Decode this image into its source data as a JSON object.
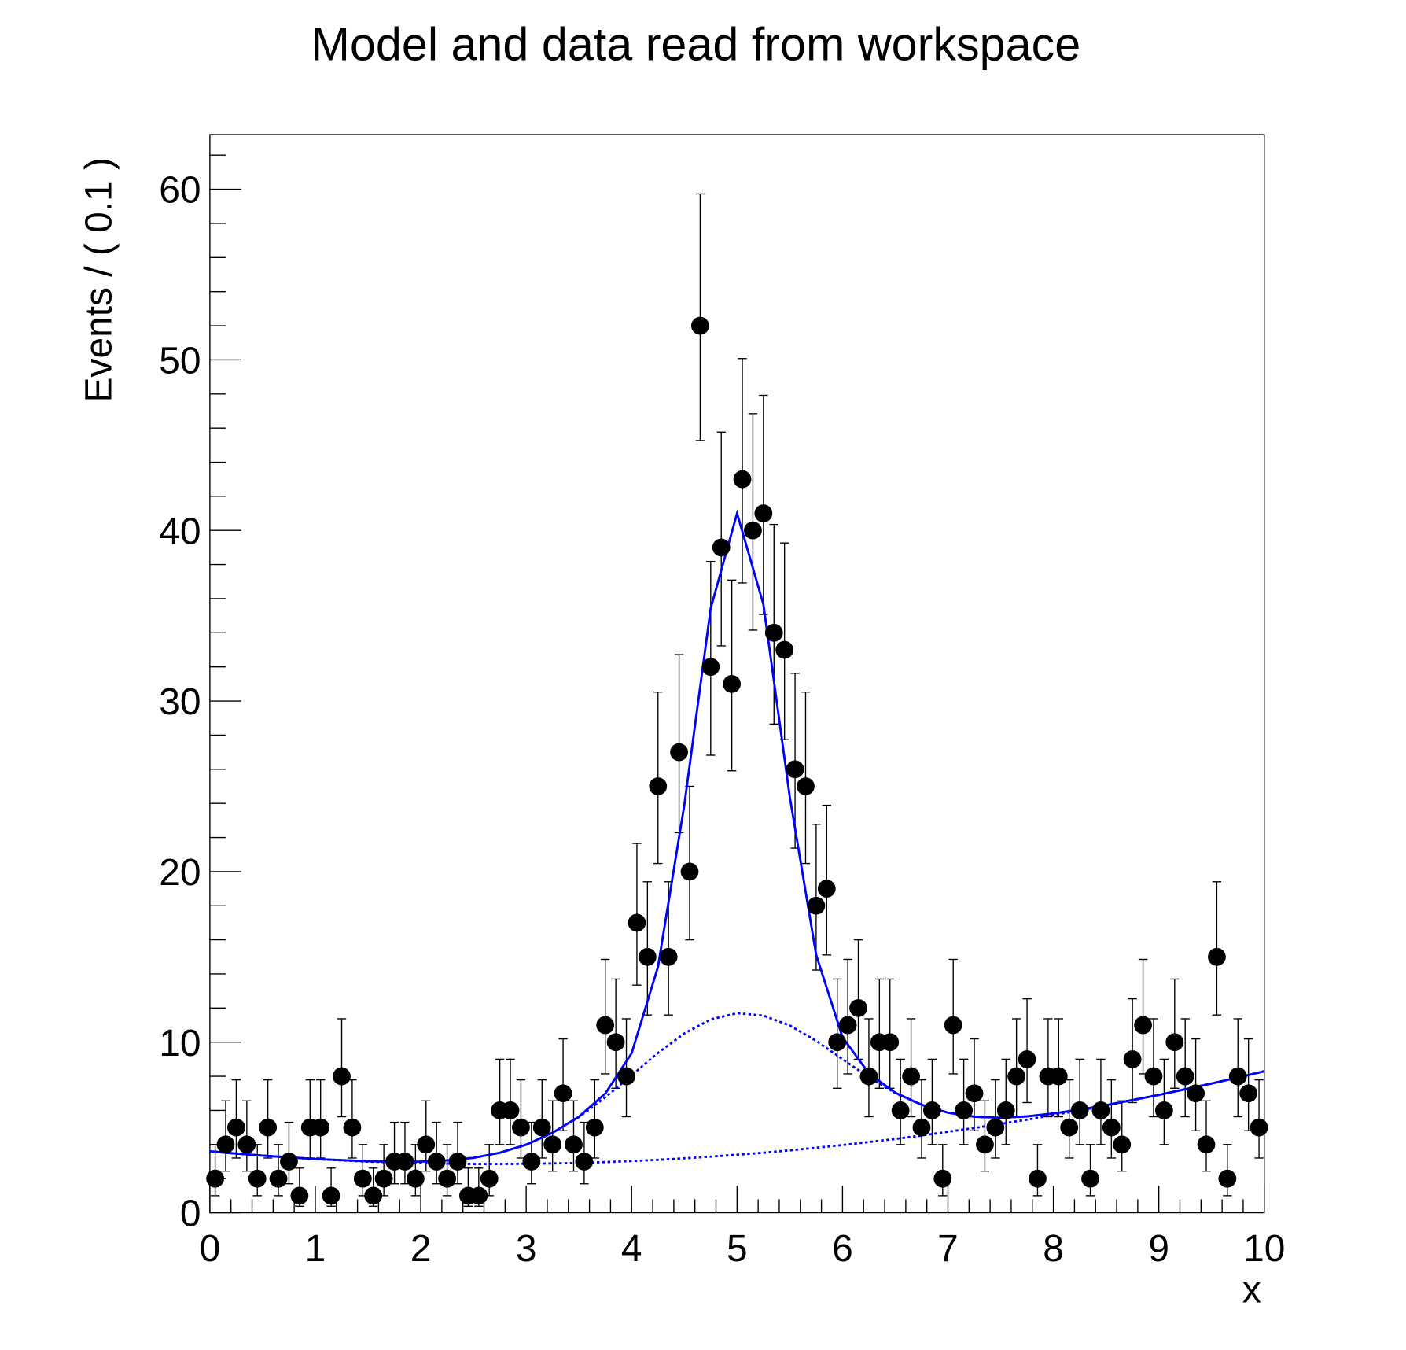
{
  "chart_data": {
    "type": "scatter",
    "title": "Model and data read from workspace",
    "xlabel": "x",
    "ylabel": "Events / ( 0.1 )",
    "xlim": [
      0,
      10
    ],
    "ylim": [
      0,
      63
    ],
    "x_ticks": [
      "0",
      "1",
      "2",
      "3",
      "4",
      "5",
      "6",
      "7",
      "8",
      "9",
      "10"
    ],
    "y_ticks": [
      "0",
      "10",
      "20",
      "30",
      "40",
      "50",
      "60"
    ],
    "grid": false,
    "data": {
      "x": [
        0.05,
        0.15,
        0.25,
        0.35,
        0.45,
        0.55,
        0.65,
        0.75,
        0.85,
        0.95,
        1.05,
        1.15,
        1.25,
        1.35,
        1.45,
        1.55,
        1.65,
        1.75,
        1.85,
        1.95,
        2.05,
        2.15,
        2.25,
        2.35,
        2.45,
        2.55,
        2.65,
        2.75,
        2.85,
        2.95,
        3.05,
        3.15,
        3.25,
        3.35,
        3.45,
        3.55,
        3.65,
        3.75,
        3.85,
        3.95,
        4.05,
        4.15,
        4.25,
        4.35,
        4.45,
        4.55,
        4.65,
        4.75,
        4.85,
        4.95,
        5.05,
        5.15,
        5.25,
        5.35,
        5.45,
        5.55,
        5.65,
        5.75,
        5.85,
        5.95,
        6.05,
        6.15,
        6.25,
        6.35,
        6.45,
        6.55,
        6.65,
        6.75,
        6.85,
        6.95,
        7.05,
        7.15,
        7.25,
        7.35,
        7.45,
        7.55,
        7.65,
        7.75,
        7.85,
        7.95,
        8.05,
        8.15,
        8.25,
        8.35,
        8.45,
        8.55,
        8.65,
        8.75,
        8.85,
        8.95,
        9.05,
        9.15,
        9.25,
        9.35,
        9.45,
        9.55,
        9.65,
        9.75,
        9.85,
        9.95
      ],
      "y": [
        2,
        4,
        5,
        4,
        2,
        5,
        2,
        3,
        1,
        5,
        5,
        1,
        8,
        5,
        2,
        1,
        2,
        3,
        3,
        2,
        4,
        3,
        2,
        3,
        1,
        1,
        2,
        6,
        6,
        5,
        3,
        5,
        4,
        7,
        4,
        3,
        5,
        11,
        10,
        8,
        17,
        15,
        25,
        15,
        27,
        20,
        52,
        32,
        39,
        31,
        43,
        40,
        41,
        34,
        33,
        26,
        25,
        18,
        19,
        10,
        11,
        12,
        8,
        10,
        10,
        6,
        8,
        5,
        6,
        2,
        11,
        6,
        7,
        4,
        5,
        6,
        8,
        9,
        2,
        8,
        8,
        5,
        6,
        2,
        6,
        5,
        4,
        9,
        11,
        8,
        6,
        10,
        8,
        7,
        4,
        15,
        2,
        8,
        7,
        5
      ]
    },
    "model": {
      "x": [
        0,
        0.25,
        0.5,
        0.75,
        1,
        1.25,
        1.5,
        1.75,
        2,
        2.25,
        2.5,
        2.75,
        3,
        3.25,
        3.5,
        3.75,
        4,
        4.25,
        4.5,
        4.75,
        5,
        5.25,
        5.5,
        5.75,
        6,
        6.25,
        6.5,
        6.75,
        7,
        7.25,
        7.5,
        7.75,
        8,
        8.25,
        8.5,
        8.75,
        9,
        9.25,
        9.5,
        9.75,
        10
      ],
      "background": [
        3.6,
        3.47,
        3.35,
        3.25,
        3.15,
        3.07,
        3.0,
        2.95,
        2.91,
        2.88,
        2.86,
        2.86,
        2.87,
        2.89,
        2.92,
        2.97,
        3.03,
        3.1,
        3.19,
        3.29,
        3.4,
        3.52,
        3.66,
        3.81,
        3.97,
        4.15,
        4.33,
        4.53,
        4.75,
        4.97,
        5.21,
        5.46,
        5.73,
        6.0,
        6.29,
        6.6,
        6.91,
        7.24,
        7.58,
        7.93,
        8.3
      ],
      "signal_wide": [
        0,
        0,
        0,
        0,
        0,
        0.01,
        0.02,
        0.04,
        0.09,
        0.19,
        0.36,
        0.66,
        1.12,
        1.8,
        2.69,
        3.8,
        5.03,
        6.27,
        7.32,
        8.04,
        8.3,
        8.04,
        7.32,
        6.27,
        5.03,
        3.8,
        2.69,
        1.8,
        1.12,
        0.66,
        0.36,
        0.19,
        0.09,
        0.04,
        0.02,
        0.01,
        0,
        0,
        0,
        0,
        0
      ],
      "signal_narrow": [
        0,
        0,
        0,
        0,
        0,
        0,
        0,
        0,
        0,
        0,
        0,
        0,
        0,
        0,
        0.02,
        0.22,
        1.29,
        5.05,
        13.4,
        24.1,
        29.3,
        24.1,
        13.4,
        5.05,
        1.29,
        0.22,
        0.02,
        0,
        0,
        0,
        0,
        0,
        0,
        0,
        0,
        0,
        0,
        0,
        0,
        0,
        0
      ],
      "line_color": "#0000ff",
      "marker_color": "#000000"
    }
  }
}
